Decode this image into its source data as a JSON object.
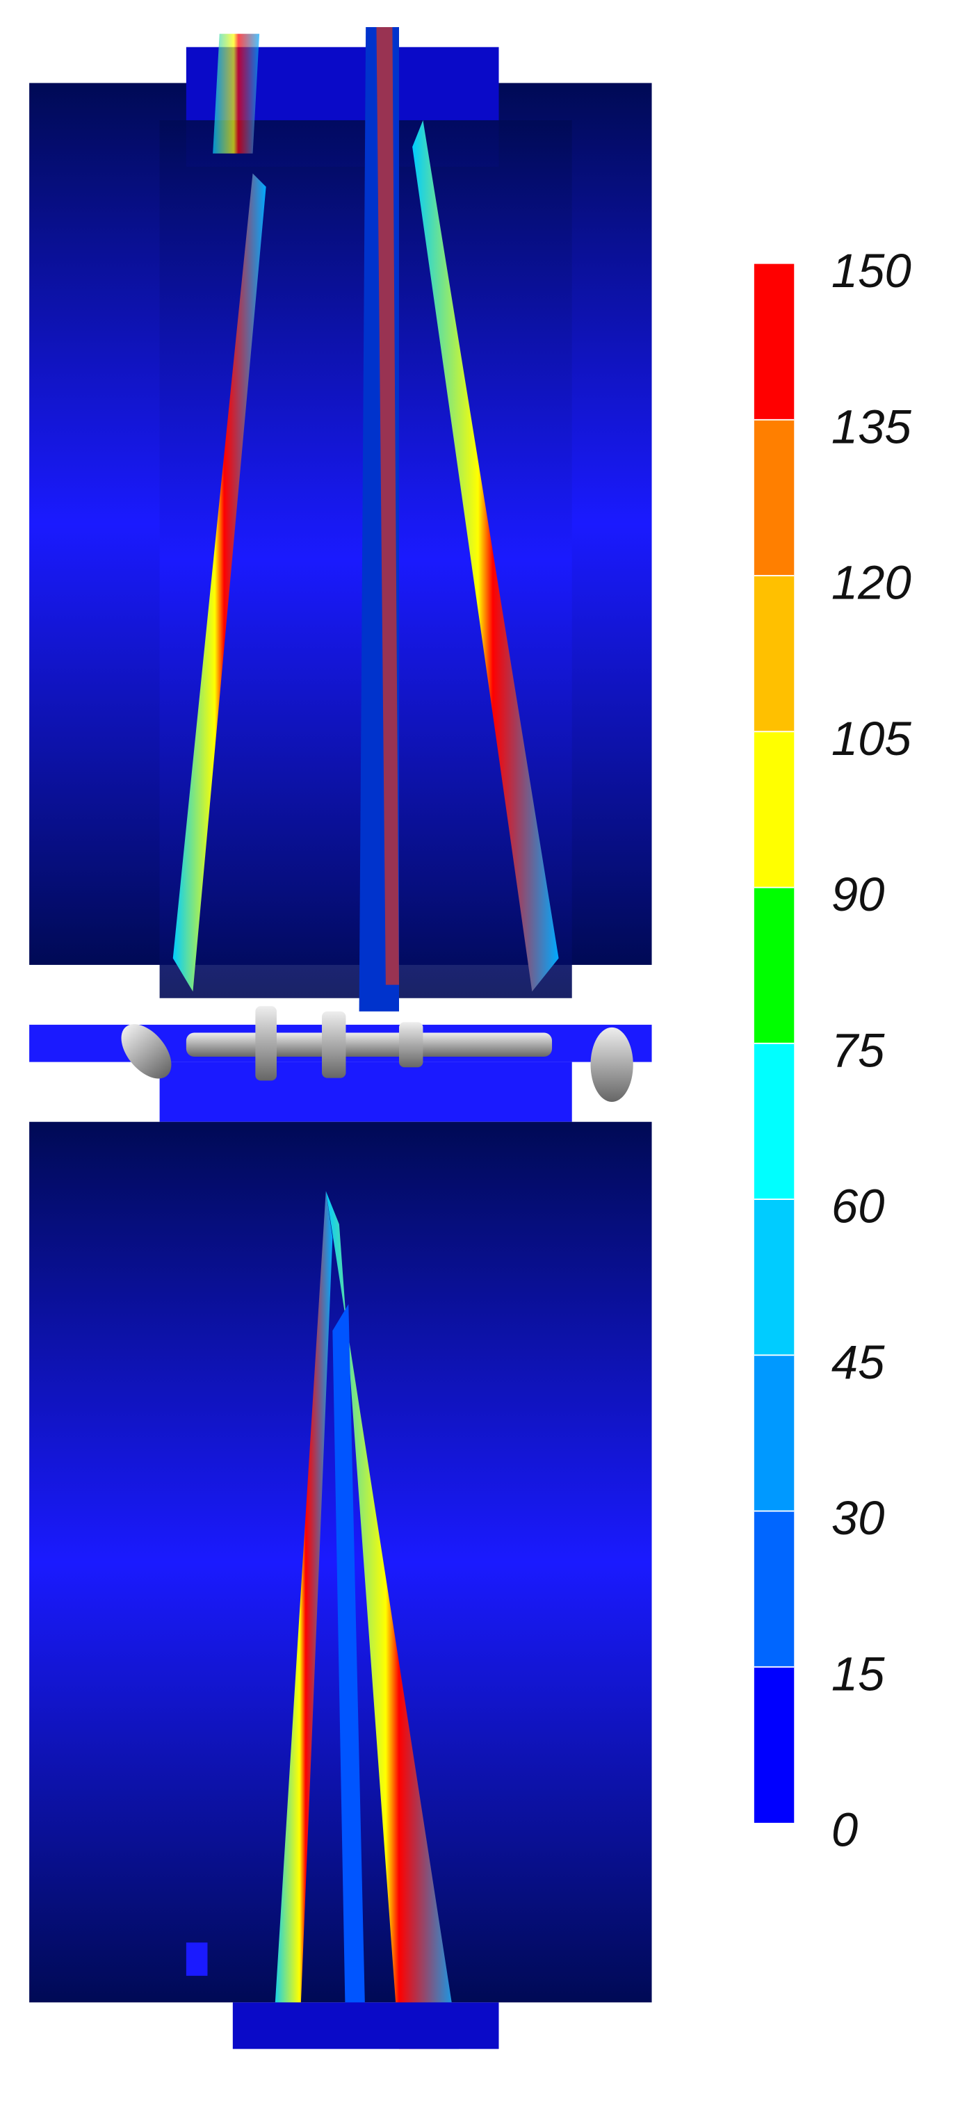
{
  "colorbar": {
    "lim": [
      0,
      150
    ],
    "ticks": [
      0,
      15,
      30,
      45,
      60,
      75,
      90,
      105,
      120,
      135,
      150
    ],
    "colors": [
      "#0000ff",
      "#0066ff",
      "#0099ff",
      "#00ccff",
      "#00ffff",
      "#00ff00",
      "#ffff00",
      "#ffc000",
      "#ff7f00",
      "#ff0000"
    ]
  }
}
